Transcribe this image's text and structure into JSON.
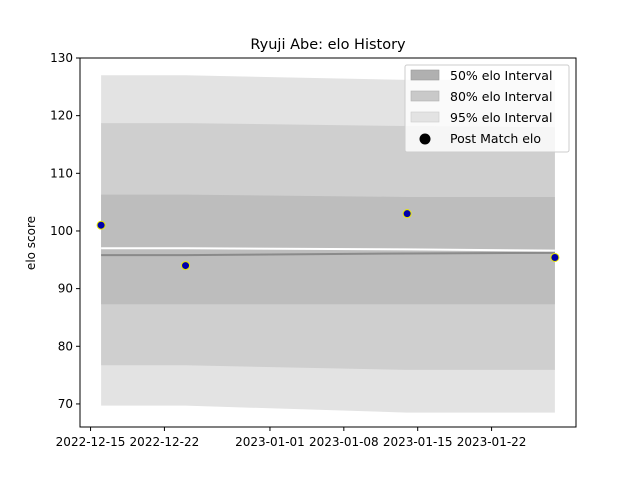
{
  "chart_data": {
    "type": "area",
    "title": "Ryuji Abe: elo History",
    "xlabel": "",
    "ylabel": "elo score",
    "ylim": [
      66,
      130
    ],
    "xlim": [
      "2022-12-14",
      "2023-01-30"
    ],
    "y_ticks": [
      70,
      80,
      90,
      100,
      110,
      120,
      130
    ],
    "x_ticks": [
      "2022-12-15",
      "2022-12-22",
      "2023-01-01",
      "2023-01-08",
      "2023-01-15",
      "2023-01-22"
    ],
    "grid": false,
    "legend_position": "upper right",
    "legend": [
      {
        "label": "50% elo Interval",
        "kind": "band",
        "color": "#b0b0b0"
      },
      {
        "label": "80% elo Interval",
        "kind": "band",
        "color": "#c9c9c9"
      },
      {
        "label": "95% elo Interval",
        "kind": "band",
        "color": "#e3e3e3"
      },
      {
        "label": "Post Match elo",
        "kind": "marker",
        "color": "#000000"
      }
    ],
    "x": [
      "2022-12-16",
      "2022-12-24",
      "2023-01-14",
      "2023-01-28"
    ],
    "median": [
      95.8,
      95.8,
      96.1,
      96.2
    ],
    "band_95": {
      "lower": [
        69.7,
        69.7,
        68.5,
        68.5
      ],
      "upper": [
        127.0,
        127.0,
        126.2,
        126.2
      ]
    },
    "band_80": {
      "lower": [
        76.7,
        76.7,
        75.9,
        75.9
      ],
      "upper": [
        118.7,
        118.7,
        118.2,
        118.0
      ]
    },
    "band_50": {
      "lower": [
        87.3,
        87.3,
        87.3,
        87.3
      ],
      "upper": [
        106.3,
        106.3,
        105.9,
        105.9
      ]
    },
    "pre_match_line": [
      97.0,
      97.0,
      96.8,
      96.6
    ],
    "post_match_elo": [
      101.0,
      94.0,
      103.0,
      95.4
    ],
    "colors": {
      "band_95": "#e3e3e3",
      "band_80": "#cfcfcf",
      "band_50": "#bdbdbd",
      "median_line": "#8a8a8a",
      "prior_line": "#ffffff",
      "point_fill": "#0000aa",
      "point_edge": "#e6e600"
    }
  }
}
